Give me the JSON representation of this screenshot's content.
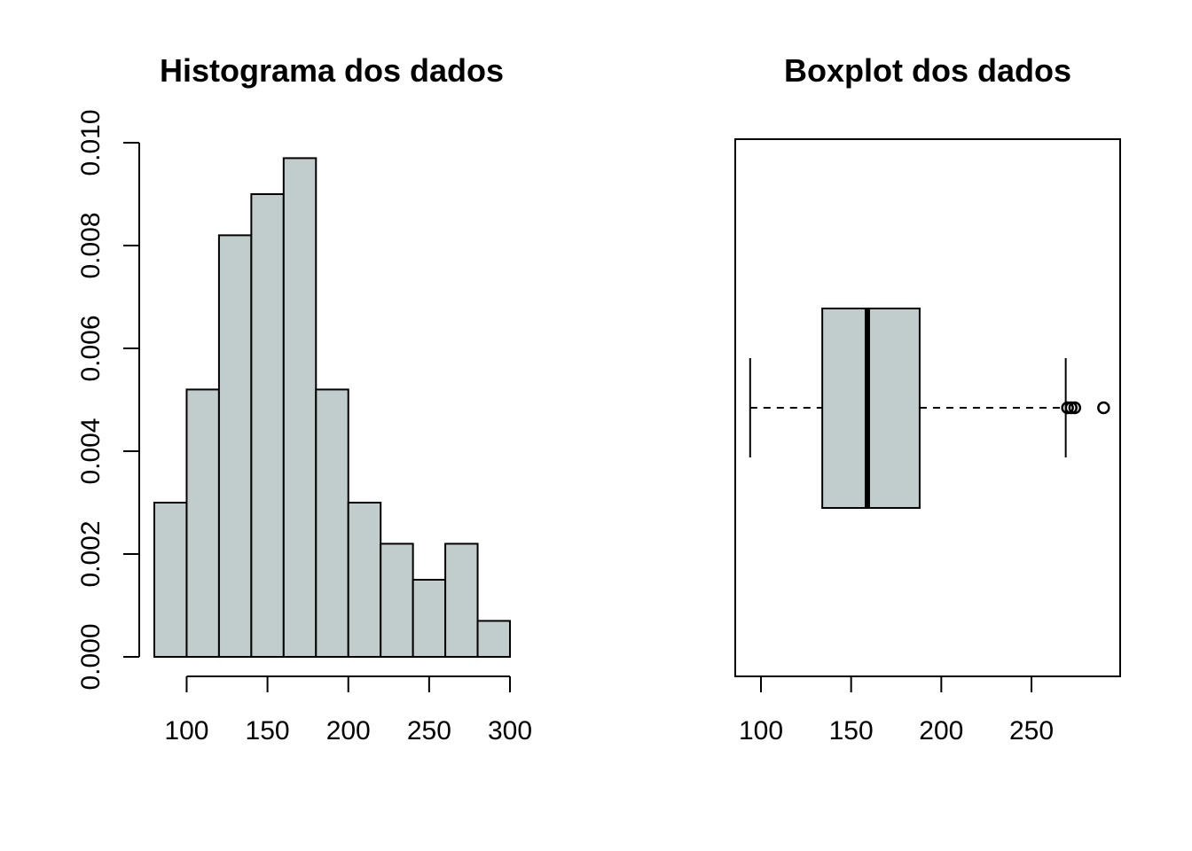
{
  "chart_data": [
    {
      "type": "bar",
      "title": "Histograma dos dados",
      "xlabel": "",
      "ylabel": "",
      "bins": [
        {
          "x0": 80,
          "x1": 100,
          "density": 0.003
        },
        {
          "x0": 100,
          "x1": 120,
          "density": 0.0052
        },
        {
          "x0": 120,
          "x1": 140,
          "density": 0.0082
        },
        {
          "x0": 140,
          "x1": 160,
          "density": 0.009
        },
        {
          "x0": 160,
          "x1": 180,
          "density": 0.0097
        },
        {
          "x0": 180,
          "x1": 200,
          "density": 0.0052
        },
        {
          "x0": 200,
          "x1": 220,
          "density": 0.003
        },
        {
          "x0": 220,
          "x1": 240,
          "density": 0.0022
        },
        {
          "x0": 240,
          "x1": 260,
          "density": 0.0015
        },
        {
          "x0": 260,
          "x1": 280,
          "density": 0.0022
        },
        {
          "x0": 280,
          "x1": 300,
          "density": 0.0007
        }
      ],
      "xticks": [
        100,
        150,
        200,
        250,
        300
      ],
      "yticks": [
        "0.000",
        "0.002",
        "0.004",
        "0.006",
        "0.008",
        "0.010"
      ],
      "xlim": [
        80,
        300
      ],
      "ylim": [
        0,
        0.01
      ],
      "bar_color": "#c1cdcd",
      "grid": false
    },
    {
      "type": "boxplot",
      "title": "Boxplot dos dados",
      "orientation": "horizontal",
      "whisker_low": 94,
      "q1": 134,
      "median": 159,
      "q3": 188,
      "whisker_high": 269,
      "outliers": [
        270,
        272,
        274,
        290
      ],
      "xticks": [
        100,
        150,
        200,
        250
      ],
      "xlim": [
        85,
        300
      ],
      "box_color": "#c1cdcd",
      "grid": false
    }
  ]
}
